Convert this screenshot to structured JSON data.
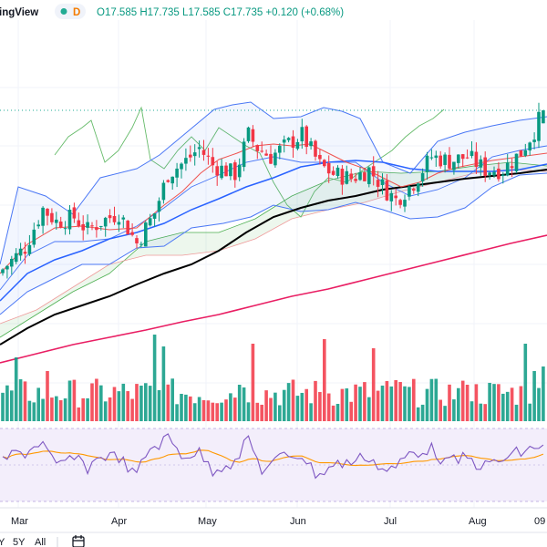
{
  "header": {
    "brand": "ingView",
    "interval_badge": "D",
    "ohlc": "O17.585  H17.735  L17.585  C17.735  +0.120 (+0.68%)"
  },
  "toolbar": {
    "range_5y": "5Y",
    "range_all": "All",
    "calendar_icon": "calendar-icon",
    "clipped_right_label": "09"
  },
  "colors": {
    "up": "#089981",
    "down": "#f23645",
    "ma_black": "#000000",
    "ma_blue": "#2962ff",
    "ma_red": "#e91e63",
    "bb": "#4a77f5",
    "cloud_green": "#4caf50",
    "cloud_red": "#ef9a9a",
    "rsi": "#7e57c2",
    "rsi_ma": "#ff9800"
  },
  "chart_data": {
    "type": "candlestick",
    "x_tick_labels": [
      "Mar",
      "Apr",
      "May",
      "Jun",
      "Jul",
      "Aug"
    ],
    "last_close": 17.735,
    "open": 17.585,
    "high": 17.735,
    "low": 17.585,
    "change": 0.12,
    "change_pct": 0.68,
    "indicators": [
      "Bollinger Bands",
      "Ichimoku Cloud",
      "Moving Averages",
      "Volume",
      "RSI"
    ],
    "grid": true
  }
}
